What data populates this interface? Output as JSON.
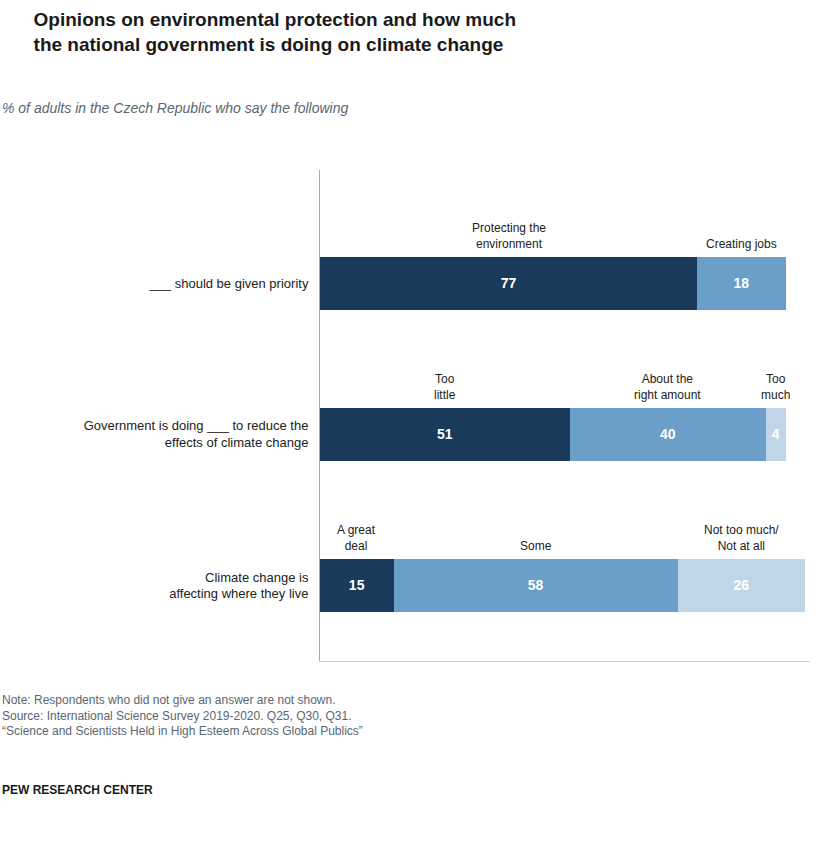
{
  "chart_data": {
    "type": "bar",
    "orientation": "horizontal",
    "stacked": true,
    "title": "Opinions on environmental protection and how much\nthe national government is doing on climate change",
    "subtitle": "% of adults in the Czech Republic who say the following",
    "categories": [
      "___ should be given priority",
      "Government is doing ___ to reduce the\neffects of climate change",
      "Climate change is\naffecting where they live"
    ],
    "series": [
      {
        "color": "#1a3a5c",
        "values": [
          77,
          51,
          15
        ],
        "labels": [
          "Protecting the\nenvironment",
          "Too\nlittle",
          "A great\ndeal"
        ]
      },
      {
        "color": "#6b9ec8",
        "values": [
          18,
          40,
          58
        ],
        "labels": [
          "Creating jobs",
          "About the\nright amount",
          "Some"
        ]
      },
      {
        "color": "#c0d5e8",
        "values": [
          null,
          4,
          26
        ],
        "labels": [
          null,
          "Too\nmuch",
          "Not too much/\nNot at all"
        ]
      }
    ],
    "xlim": [
      0,
      100
    ],
    "data_labels": true,
    "tick_labels": "y",
    "grid": false,
    "notes": [
      "Note: Respondents who did not give an answer are not shown.",
      "Source: International Science Survey 2019-2020. Q25, Q30, Q31.",
      "“Science and Scientists Held in High Esteem Across Global Publics”"
    ],
    "footer": "PEW RESEARCH CENTER"
  }
}
